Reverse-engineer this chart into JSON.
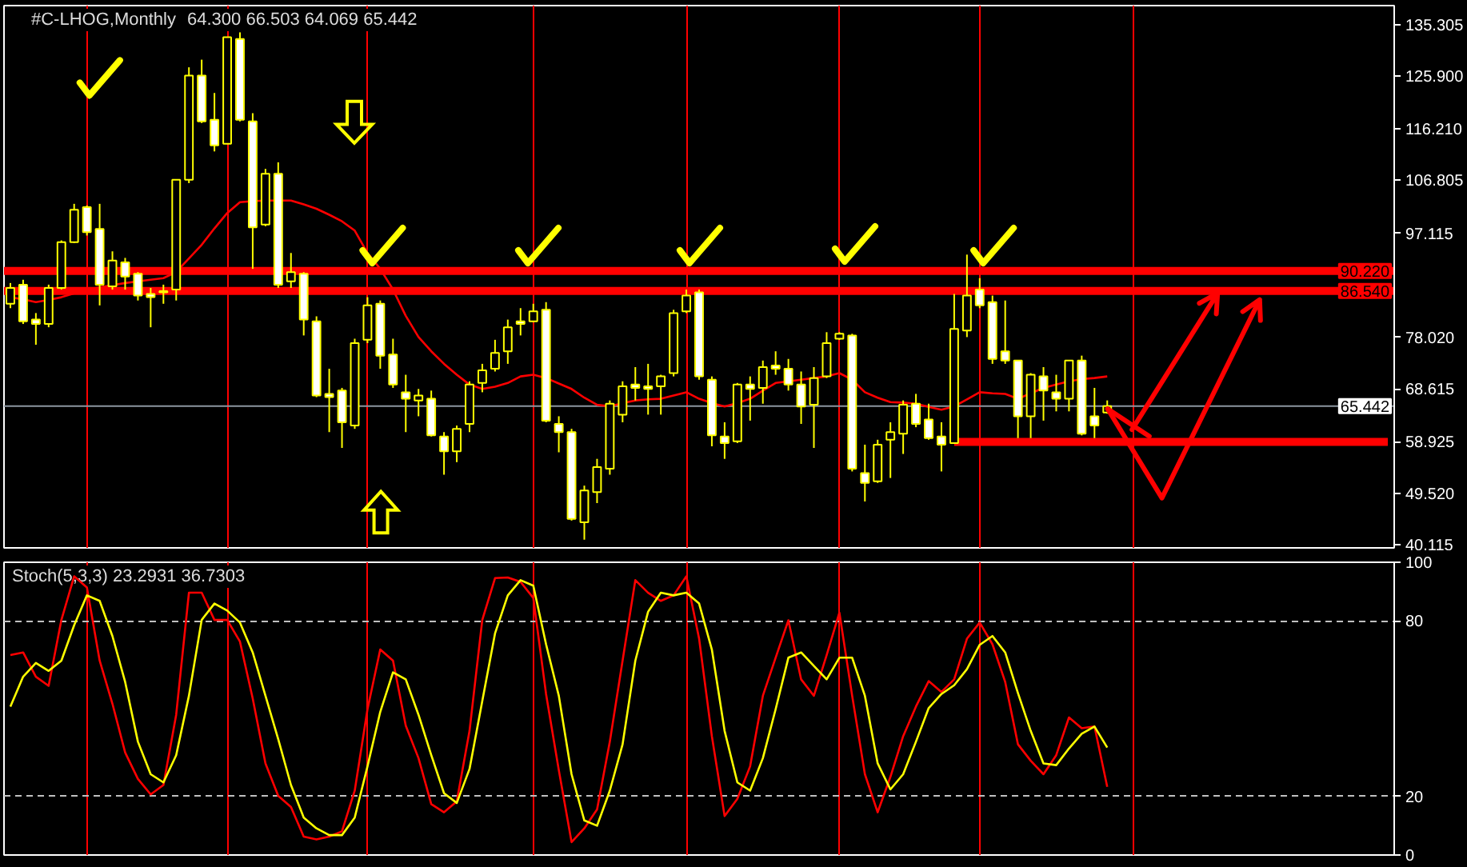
{
  "chart_data": [
    {
      "type": "candlestick",
      "title": "#C-LHOG,Monthly",
      "subtitle": "64.300 66.503 64.069 65.442",
      "color": "#ffff00",
      "categories": [
        null,
        null,
        null,
        null,
        null,
        null,
        null,
        null,
        null,
        null,
        null,
        null,
        null,
        null,
        null,
        null,
        null,
        null,
        null,
        null,
        null,
        null,
        null,
        null,
        null,
        null,
        null,
        null,
        null,
        null,
        null,
        null,
        null,
        null,
        null,
        null,
        null,
        null,
        null,
        null,
        null,
        null,
        null,
        null,
        null,
        null,
        null,
        null,
        null,
        null,
        null,
        null,
        null,
        null,
        null,
        null,
        null,
        null,
        null,
        null,
        null,
        null,
        null,
        null,
        null,
        null,
        null,
        null,
        null,
        null,
        null,
        null,
        null,
        null,
        null,
        null,
        null,
        null,
        null,
        null,
        null,
        null,
        null,
        null,
        null,
        null,
        null,
        null,
        null,
        null,
        null,
        null,
        null,
        null,
        null,
        null,
        null,
        null,
        null,
        null,
        null,
        null,
        null,
        null,
        null,
        null,
        null,
        null,
        null
      ],
      "ohlc": [
        [
          84.2,
          88.0,
          83.4,
          87.1
        ],
        [
          87.7,
          88.6,
          80.5,
          81.0
        ],
        [
          81.3,
          82.5,
          76.7,
          80.5
        ],
        [
          80.5,
          87.7,
          79.9,
          87.1
        ],
        [
          87.1,
          95.8,
          86.8,
          95.5
        ],
        [
          95.5,
          102.5,
          95.3,
          101.4
        ],
        [
          101.9,
          102.2,
          96.7,
          97.3
        ],
        [
          97.9,
          102.5,
          83.9,
          87.7
        ],
        [
          87.4,
          93.8,
          86.8,
          92.1
        ],
        [
          91.8,
          92.6,
          86.8,
          89.2
        ],
        [
          89.7,
          90.0,
          84.8,
          85.7
        ],
        [
          86.0,
          87.1,
          79.9,
          85.4
        ],
        [
          86.3,
          87.7,
          84.2,
          86.5
        ],
        [
          86.8,
          106.9,
          84.8,
          106.9
        ],
        [
          106.9,
          127.5,
          106.3,
          126.0
        ],
        [
          126.0,
          128.9,
          117.3,
          117.6
        ],
        [
          117.9,
          122.8,
          112.1,
          113.2
        ],
        [
          113.5,
          133.0,
          113.5,
          133.0
        ],
        [
          132.7,
          133.9,
          117.6,
          117.9
        ],
        [
          117.6,
          119.1,
          90.6,
          98.2
        ],
        [
          98.7,
          108.9,
          98.4,
          108.0
        ],
        [
          108.0,
          110.1,
          87.1,
          87.7
        ],
        [
          88.3,
          93.5,
          87.1,
          90.0
        ],
        [
          89.7,
          90.0,
          78.4,
          81.3
        ],
        [
          81.0,
          81.9,
          67.1,
          67.4
        ],
        [
          67.7,
          72.3,
          60.7,
          67.1
        ],
        [
          68.3,
          68.8,
          57.8,
          62.5
        ],
        [
          61.9,
          77.8,
          61.3,
          77.0
        ],
        [
          77.6,
          85.4,
          77.0,
          83.9
        ],
        [
          84.2,
          84.8,
          72.3,
          74.7
        ],
        [
          74.9,
          77.8,
          68.8,
          69.4
        ],
        [
          68.0,
          71.2,
          60.7,
          66.8
        ],
        [
          66.5,
          68.6,
          63.6,
          67.4
        ],
        [
          66.8,
          68.3,
          59.9,
          60.1
        ],
        [
          59.9,
          60.7,
          52.9,
          57.2
        ],
        [
          57.2,
          61.9,
          55.2,
          61.3
        ],
        [
          62.2,
          70.0,
          60.7,
          69.4
        ],
        [
          69.7,
          73.2,
          68.0,
          72.0
        ],
        [
          72.3,
          77.6,
          71.8,
          75.2
        ],
        [
          75.5,
          81.3,
          73.2,
          79.9
        ],
        [
          81.0,
          83.4,
          78.4,
          80.5
        ],
        [
          81.0,
          84.2,
          80.8,
          82.8
        ],
        [
          83.1,
          84.5,
          62.5,
          62.8
        ],
        [
          62.2,
          63.6,
          57.0,
          60.7
        ],
        [
          60.7,
          61.3,
          44.5,
          44.8
        ],
        [
          44.2,
          50.9,
          41.0,
          50.0
        ],
        [
          49.7,
          55.8,
          47.7,
          54.3
        ],
        [
          54.0,
          66.5,
          52.9,
          65.9
        ],
        [
          63.9,
          70.0,
          62.5,
          69.1
        ],
        [
          69.4,
          72.6,
          66.5,
          68.8
        ],
        [
          69.1,
          73.2,
          63.9,
          68.6
        ],
        [
          69.1,
          71.2,
          63.9,
          70.9
        ],
        [
          71.5,
          83.1,
          70.9,
          82.5
        ],
        [
          82.8,
          86.8,
          82.5,
          85.7
        ],
        [
          86.3,
          86.8,
          70.3,
          70.9
        ],
        [
          70.3,
          70.9,
          58.1,
          60.1
        ],
        [
          59.9,
          62.5,
          55.8,
          58.7
        ],
        [
          59.0,
          69.7,
          58.7,
          69.4
        ],
        [
          69.4,
          70.9,
          62.8,
          68.6
        ],
        [
          68.8,
          73.8,
          65.9,
          72.6
        ],
        [
          72.9,
          75.5,
          71.2,
          72.3
        ],
        [
          72.3,
          74.1,
          68.3,
          69.4
        ],
        [
          69.4,
          71.8,
          62.2,
          65.4
        ],
        [
          65.7,
          72.6,
          57.8,
          70.6
        ],
        [
          70.9,
          79.0,
          70.6,
          77.0
        ],
        [
          77.8,
          79.0,
          77.6,
          78.7
        ],
        [
          78.4,
          78.7,
          53.5,
          54.0
        ],
        [
          53.2,
          58.4,
          48.0,
          51.4
        ],
        [
          51.7,
          59.3,
          51.4,
          58.4
        ],
        [
          59.3,
          62.5,
          52.3,
          60.7
        ],
        [
          60.4,
          66.5,
          56.7,
          65.7
        ],
        [
          65.9,
          67.7,
          61.6,
          62.2
        ],
        [
          63.0,
          65.9,
          59.3,
          59.6
        ],
        [
          59.9,
          62.5,
          53.5,
          58.4
        ],
        [
          58.7,
          86.0,
          58.7,
          79.6
        ],
        [
          79.3,
          93.2,
          78.1,
          85.7
        ],
        [
          86.8,
          88.9,
          83.4,
          83.9
        ],
        [
          84.5,
          85.7,
          73.2,
          74.1
        ],
        [
          75.5,
          84.8,
          73.2,
          73.8
        ],
        [
          73.8,
          73.8,
          59.6,
          63.6
        ],
        [
          63.6,
          71.5,
          59.6,
          71.2
        ],
        [
          70.9,
          72.6,
          62.8,
          68.3
        ],
        [
          68.0,
          71.2,
          64.5,
          66.8
        ],
        [
          66.8,
          73.8,
          64.5,
          73.8
        ],
        [
          73.8,
          74.7,
          60.1,
          60.4
        ],
        [
          63.6,
          68.8,
          59.6,
          61.9
        ],
        [
          64.3,
          66.503,
          64.069,
          65.442
        ],
        null,
        null,
        null,
        null,
        null,
        null,
        null,
        null,
        null,
        null,
        null,
        null,
        null,
        null,
        null,
        null,
        null,
        null,
        null,
        null,
        null,
        null
      ],
      "series": [
        {
          "type": "line",
          "color": "#ff0000",
          "values": [
            85.4,
            85.0,
            84.5,
            84.9,
            85.4,
            86.1,
            86.8,
            87.2,
            87.6,
            88.0,
            88.3,
            88.6,
            88.9,
            90.0,
            92.5,
            95.0,
            98.0,
            100.8,
            102.8,
            103.0,
            103.1,
            103.1,
            103.1,
            102.4,
            101.6,
            100.5,
            99.3,
            97.6,
            93.5,
            90.6,
            86.8,
            82.0,
            78.1,
            75.5,
            73.2,
            71.2,
            69.4,
            68.6,
            69.0,
            69.7,
            70.9,
            71.2,
            70.6,
            69.6,
            68.6,
            67.0,
            65.7,
            65.4,
            66.0,
            66.5,
            66.7,
            66.8,
            67.4,
            68.0,
            66.8,
            66.0,
            65.4,
            66.0,
            66.8,
            68.3,
            69.7,
            70.0,
            70.3,
            70.6,
            70.9,
            71.5,
            70.3,
            68.0,
            67.0,
            66.2,
            66.1,
            65.9,
            65.3,
            64.8,
            65.4,
            66.7,
            68.0,
            67.8,
            67.7,
            66.8,
            67.8,
            68.8,
            69.4,
            70.0,
            70.4,
            70.6,
            70.9,
            null,
            null,
            null,
            null,
            null,
            null,
            null,
            null,
            null,
            null,
            null,
            null,
            null,
            null,
            null,
            null,
            null,
            null,
            null,
            null,
            null,
            null
          ]
        },
        {
          "type": "line",
          "color": "#ff0000",
          "values": [
            null,
            null,
            null,
            null,
            null,
            null,
            null,
            null,
            null,
            null,
            null,
            null,
            null,
            null,
            null,
            null,
            null,
            null,
            null,
            null,
            null,
            null,
            null,
            null,
            null,
            null,
            null,
            null,
            null,
            null,
            null,
            null,
            null,
            null,
            null,
            null,
            null,
            null,
            null,
            null,
            null,
            null,
            null,
            null,
            null,
            null,
            null,
            null,
            null,
            null,
            null,
            null,
            null,
            null,
            null,
            null,
            null,
            null,
            null,
            null,
            null,
            null,
            null,
            null,
            null,
            null,
            null,
            null,
            null,
            null,
            null,
            null,
            null,
            null,
            58.9,
            58.9,
            58.9,
            58.9,
            58.9,
            58.9,
            58.9,
            58.9,
            58.9,
            58.9,
            58.9,
            58.9,
            58.9,
            58.9,
            58.9,
            58.9,
            58.9,
            58.9,
            58.9,
            58.9,
            58.9,
            58.9,
            58.9,
            58.9,
            58.9,
            58.9,
            58.9,
            58.9,
            58.9,
            58.9,
            58.9,
            58.9,
            58.9,
            58.9,
            58.9
          ]
        }
      ],
      "ref_lines": [
        {
          "axis": "y",
          "value": 90.22,
          "label": "90.220",
          "color": "#ff0000"
        },
        {
          "axis": "y",
          "value": 86.54,
          "label": "86.540",
          "color": "#ff0000"
        },
        {
          "axis": "y",
          "value": 65.442,
          "label": "65.442",
          "color": "#8c96a0"
        }
      ],
      "ylim": [
        39.5,
        138.8
      ],
      "yticks": [
        40.115,
        {
          "value": 49.52,
          "label": "49.520"
        },
        58.925,
        68.615,
        {
          "value": 78.02,
          "label": "78.020"
        },
        97.115,
        106.805,
        {
          "value": 116.21,
          "label": "116.210"
        },
        {
          "value": 125.9,
          "label": "125.900"
        },
        135.305
      ],
      "grid": "x",
      "tick_labels": "y"
    },
    {
      "type": "line",
      "title": "Stoch(5,3,3) 23.2931 36.7303",
      "categories": [
        null,
        null,
        null,
        null,
        null,
        null,
        null,
        null,
        null,
        null,
        null,
        null,
        null,
        null,
        null,
        null,
        null,
        null,
        null,
        null,
        null,
        null,
        null,
        null,
        null,
        null,
        null,
        null,
        null,
        null,
        null,
        null,
        null,
        null,
        null,
        null,
        null,
        null,
        null,
        null,
        null,
        null,
        null,
        null,
        null,
        null,
        null,
        null,
        null,
        null,
        null,
        null,
        null,
        null,
        null,
        null,
        null,
        null,
        null,
        null,
        null,
        null,
        null,
        null,
        null,
        null,
        null,
        null,
        null,
        null,
        null,
        null,
        null,
        null,
        null,
        null,
        null,
        null,
        null,
        null,
        null,
        null,
        null,
        null,
        null,
        null,
        null,
        null,
        null,
        null,
        null,
        null,
        null,
        null,
        null,
        null,
        null,
        null,
        null,
        null,
        null,
        null,
        null,
        null,
        null,
        null,
        null,
        null,
        null
      ],
      "series": [
        {
          "color": "#ff0000",
          "values": [
            68.3,
            69.2,
            60.9,
            57.8,
            80.3,
            95.2,
            91.4,
            66.4,
            51.7,
            35.0,
            26.0,
            20.7,
            23.9,
            47.9,
            89.6,
            89.6,
            80.3,
            80.3,
            72.9,
            53.5,
            31.3,
            20.2,
            16.4,
            6.3,
            5.3,
            6.3,
            8.1,
            22.0,
            49.8,
            70.2,
            66.4,
            44.2,
            33.1,
            17.4,
            14.6,
            18.3,
            42.4,
            80.3,
            94.6,
            94.8,
            93.3,
            87.8,
            55.0,
            29.0,
            4.4,
            9.1,
            15.6,
            38.7,
            66.4,
            93.9,
            89.6,
            86.8,
            88.7,
            95.2,
            73.9,
            40.6,
            13.3,
            19.2,
            30.3,
            54.4,
            67.4,
            80.2,
            60.0,
            54.4,
            68.3,
            82.8,
            54.4,
            27.6,
            14.6,
            26.7,
            40.6,
            50.7,
            59.4,
            55.7,
            60.0,
            73.9,
            79.4,
            72.0,
            59.1,
            37.8,
            32.2,
            27.6,
            34.1,
            47.0,
            43.3,
            43.9,
            23.3,
            null,
            null,
            null,
            null,
            null,
            null,
            null,
            null,
            null,
            null,
            null,
            null,
            null,
            null,
            null,
            null,
            null,
            null,
            null,
            null,
            null,
            null
          ]
        },
        {
          "color": "#ffff00",
          "values": [
            50.7,
            60.9,
            65.6,
            62.9,
            66.4,
            78.5,
            88.7,
            86.8,
            74.8,
            59.1,
            38.7,
            27.6,
            24.8,
            34.1,
            54.4,
            80.3,
            85.9,
            83.5,
            79.4,
            69.2,
            54.4,
            39.6,
            23.9,
            12.8,
            9.1,
            6.8,
            6.8,
            12.8,
            30.3,
            48.9,
            62.4,
            60.0,
            47.9,
            34.1,
            21.1,
            17.8,
            29.4,
            52.6,
            75.7,
            88.7,
            93.9,
            92.0,
            72.0,
            54.4,
            27.6,
            11.8,
            10.0,
            22.0,
            37.8,
            66.4,
            83.1,
            89.6,
            88.7,
            89.6,
            85.9,
            70.2,
            42.4,
            24.8,
            22.0,
            33.1,
            49.8,
            67.4,
            69.2,
            64.6,
            60.0,
            67.4,
            67.4,
            54.4,
            31.3,
            22.4,
            27.6,
            38.7,
            50.2,
            55.0,
            58.0,
            63.5,
            71.8,
            74.8,
            69.2,
            55.3,
            42.4,
            31.3,
            30.7,
            36.4,
            41.4,
            43.9,
            36.7,
            null,
            null,
            null,
            null,
            null,
            null,
            null,
            null,
            null,
            null,
            null,
            null,
            null,
            null,
            null,
            null,
            null,
            null,
            null,
            null,
            null,
            null
          ]
        }
      ],
      "ylim": [
        0,
        100
      ],
      "yticks": [
        0,
        20,
        80,
        100
      ],
      "grid": true,
      "tick_labels": "y"
    }
  ]
}
